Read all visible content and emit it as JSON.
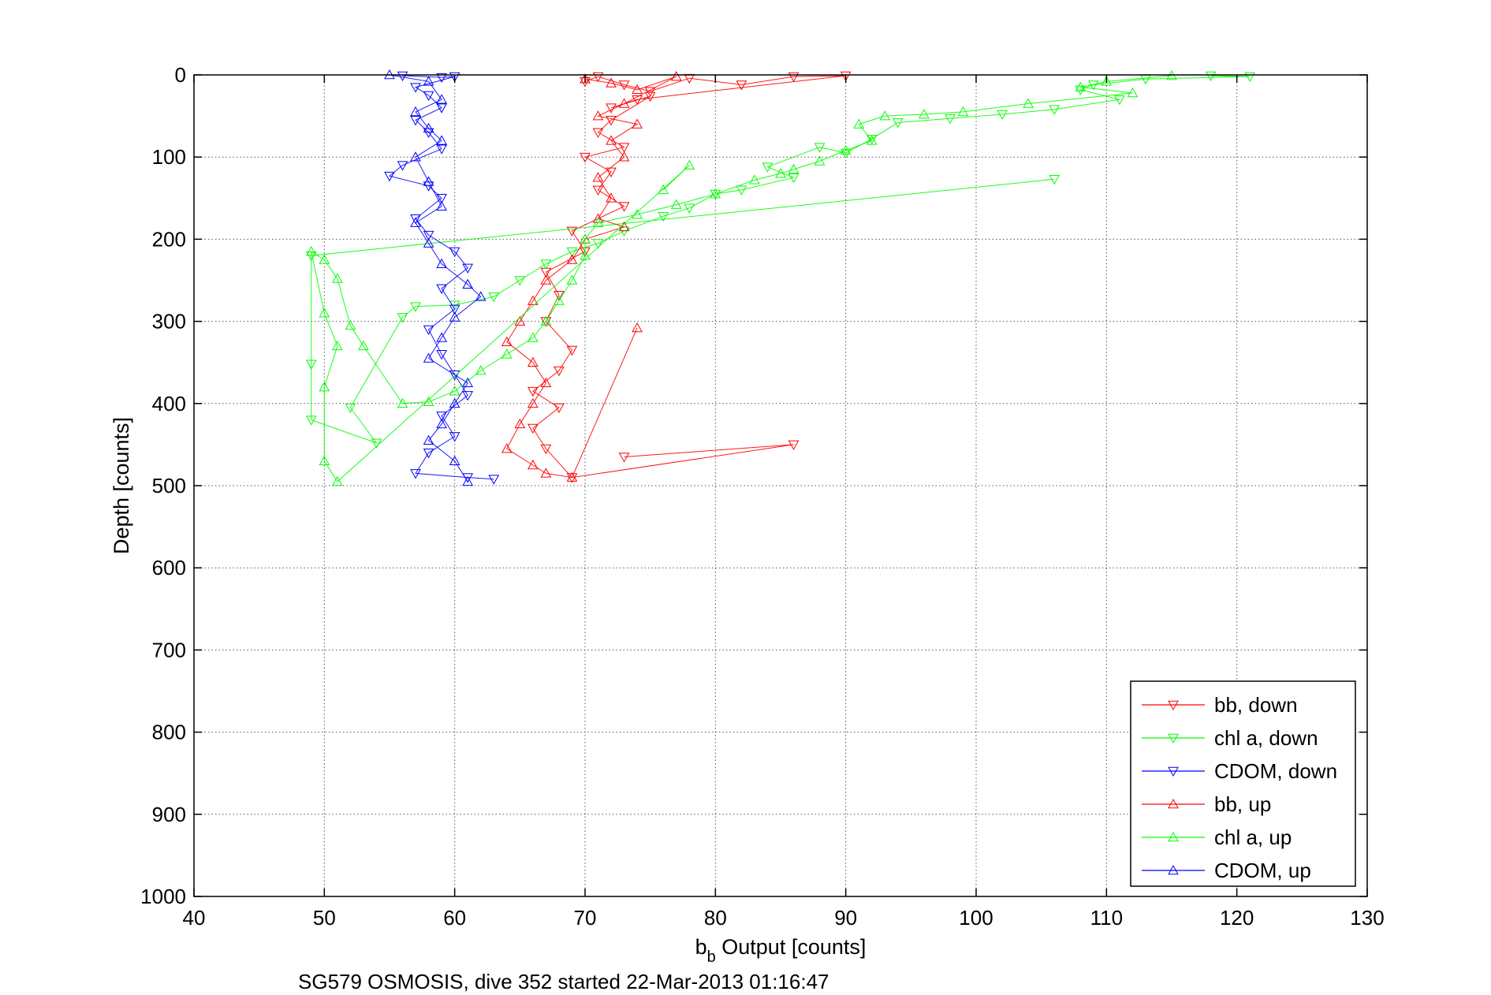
{
  "chart_data": {
    "type": "scatter",
    "x_ticks": [
      "40",
      "50",
      "60",
      "70",
      "80",
      "90",
      "100",
      "110",
      "120",
      "130"
    ],
    "y_ticks": [
      "0",
      "100",
      "200",
      "300",
      "400",
      "500",
      "600",
      "700",
      "800",
      "900",
      "1000"
    ],
    "xlim": [
      40,
      130
    ],
    "ylim": [
      0,
      1000
    ],
    "y_reversed": true,
    "grid": true,
    "ylabel": "Depth [counts]",
    "xlabel_main": "b",
    "xlabel_sub": "b",
    "xlabel_rest": " Output [counts]",
    "footer": "SG579 OSMOSIS, dive 352 started 22-Mar-2013 01:16:47",
    "legend_placement": "bottom-right",
    "series": [
      {
        "name": "bb, down",
        "color": "#ff0000",
        "marker": "triangle-down",
        "line": true,
        "points": [
          [
            70,
            8
          ],
          [
            71,
            2
          ],
          [
            73,
            12
          ],
          [
            75,
            20
          ],
          [
            78,
            4
          ],
          [
            82,
            12
          ],
          [
            86,
            2
          ],
          [
            90,
            1
          ],
          [
            74,
            30
          ],
          [
            72,
            40
          ],
          [
            75,
            26
          ],
          [
            72,
            55
          ],
          [
            71,
            70
          ],
          [
            73,
            88
          ],
          [
            70,
            100
          ],
          [
            72,
            118
          ],
          [
            71,
            140
          ],
          [
            73,
            160
          ],
          [
            69,
            190
          ],
          [
            70,
            215
          ],
          [
            67,
            240
          ],
          [
            68,
            268
          ],
          [
            67,
            300
          ],
          [
            69,
            335
          ],
          [
            68,
            360
          ],
          [
            66,
            385
          ],
          [
            68,
            405
          ],
          [
            66,
            430
          ],
          [
            67,
            455
          ],
          [
            69,
            490
          ],
          [
            86,
            450
          ],
          [
            73,
            465
          ]
        ]
      },
      {
        "name": "chl a, down",
        "color": "#00ff00",
        "marker": "triangle-down",
        "line": true,
        "points": [
          [
            118,
            1
          ],
          [
            121,
            2
          ],
          [
            113,
            5
          ],
          [
            109,
            12
          ],
          [
            108,
            18
          ],
          [
            111,
            30
          ],
          [
            106,
            42
          ],
          [
            102,
            48
          ],
          [
            98,
            53
          ],
          [
            94,
            58
          ],
          [
            92,
            78
          ],
          [
            90,
            95
          ],
          [
            88,
            88
          ],
          [
            84,
            112
          ],
          [
            86,
            125
          ],
          [
            82,
            140
          ],
          [
            80,
            145
          ],
          [
            78,
            162
          ],
          [
            76,
            172
          ],
          [
            73,
            190
          ],
          [
            71,
            205
          ],
          [
            69,
            215
          ],
          [
            67,
            230
          ],
          [
            65,
            250
          ],
          [
            63,
            270
          ],
          [
            60,
            280
          ],
          [
            57,
            282
          ],
          [
            56,
            295
          ],
          [
            52,
            405
          ],
          [
            54,
            448
          ],
          [
            49,
            420
          ],
          [
            49,
            352
          ],
          [
            49,
            220
          ],
          [
            106,
            127
          ]
        ]
      },
      {
        "name": "CDOM, down",
        "color": "#0000ff",
        "marker": "triangle-down",
        "line": true,
        "points": [
          [
            56,
            1
          ],
          [
            59,
            3
          ],
          [
            60,
            2
          ],
          [
            57,
            15
          ],
          [
            58,
            25
          ],
          [
            59,
            40
          ],
          [
            57,
            55
          ],
          [
            58,
            70
          ],
          [
            59,
            90
          ],
          [
            56,
            110
          ],
          [
            55,
            123
          ],
          [
            58,
            135
          ],
          [
            59,
            150
          ],
          [
            57,
            175
          ],
          [
            58,
            195
          ],
          [
            60,
            215
          ],
          [
            61,
            235
          ],
          [
            59,
            260
          ],
          [
            60,
            285
          ],
          [
            58,
            310
          ],
          [
            59,
            340
          ],
          [
            60,
            365
          ],
          [
            61,
            390
          ],
          [
            59,
            415
          ],
          [
            60,
            440
          ],
          [
            58,
            460
          ],
          [
            57,
            485
          ],
          [
            61,
            490
          ],
          [
            63,
            492
          ]
        ]
      },
      {
        "name": "bb, up",
        "color": "#ff0000",
        "marker": "triangle-up",
        "line": true,
        "points": [
          [
            70,
            5
          ],
          [
            72,
            10
          ],
          [
            74,
            18
          ],
          [
            77,
            2
          ],
          [
            73,
            35
          ],
          [
            71,
            50
          ],
          [
            74,
            60
          ],
          [
            72,
            80
          ],
          [
            73,
            100
          ],
          [
            71,
            125
          ],
          [
            72,
            150
          ],
          [
            71,
            175
          ],
          [
            73,
            185
          ],
          [
            70,
            200
          ],
          [
            69,
            225
          ],
          [
            67,
            250
          ],
          [
            66,
            275
          ],
          [
            65,
            300
          ],
          [
            64,
            325
          ],
          [
            66,
            350
          ],
          [
            67,
            375
          ],
          [
            66,
            400
          ],
          [
            65,
            425
          ],
          [
            64,
            455
          ],
          [
            66,
            475
          ],
          [
            67,
            485
          ],
          [
            69,
            490
          ],
          [
            74,
            308
          ]
        ]
      },
      {
        "name": "chl a, up",
        "color": "#00ff00",
        "marker": "triangle-up",
        "line": true,
        "points": [
          [
            115,
            1
          ],
          [
            110,
            8
          ],
          [
            108,
            15
          ],
          [
            112,
            22
          ],
          [
            104,
            35
          ],
          [
            99,
            45
          ],
          [
            96,
            48
          ],
          [
            93,
            50
          ],
          [
            91,
            60
          ],
          [
            92,
            80
          ],
          [
            90,
            92
          ],
          [
            88,
            105
          ],
          [
            86,
            115
          ],
          [
            85,
            120
          ],
          [
            83,
            128
          ],
          [
            80,
            145
          ],
          [
            77,
            158
          ],
          [
            74,
            170
          ],
          [
            71,
            180
          ],
          [
            70,
            200
          ],
          [
            70,
            220
          ],
          [
            69,
            250
          ],
          [
            68,
            275
          ],
          [
            67,
            300
          ],
          [
            66,
            320
          ],
          [
            64,
            340
          ],
          [
            62,
            360
          ],
          [
            60,
            385
          ],
          [
            58,
            398
          ],
          [
            56,
            400
          ],
          [
            53,
            330
          ],
          [
            52,
            305
          ],
          [
            51,
            248
          ],
          [
            50,
            225
          ],
          [
            49,
            215
          ],
          [
            50,
            290
          ],
          [
            51,
            330
          ],
          [
            50,
            380
          ],
          [
            50,
            470
          ],
          [
            51,
            495
          ],
          [
            78,
            110
          ],
          [
            76,
            140
          ]
        ]
      },
      {
        "name": "CDOM, up",
        "color": "#0000ff",
        "marker": "triangle-up",
        "line": true,
        "points": [
          [
            55,
            0
          ],
          [
            58,
            8
          ],
          [
            59,
            30
          ],
          [
            57,
            45
          ],
          [
            58,
            65
          ],
          [
            59,
            80
          ],
          [
            57,
            100
          ],
          [
            58,
            130
          ],
          [
            59,
            160
          ],
          [
            57,
            180
          ],
          [
            58,
            205
          ],
          [
            59,
            230
          ],
          [
            61,
            255
          ],
          [
            62,
            270
          ],
          [
            60,
            295
          ],
          [
            59,
            320
          ],
          [
            58,
            345
          ],
          [
            61,
            375
          ],
          [
            60,
            400
          ],
          [
            59,
            425
          ],
          [
            58,
            445
          ],
          [
            60,
            470
          ],
          [
            61,
            495
          ]
        ]
      }
    ]
  }
}
